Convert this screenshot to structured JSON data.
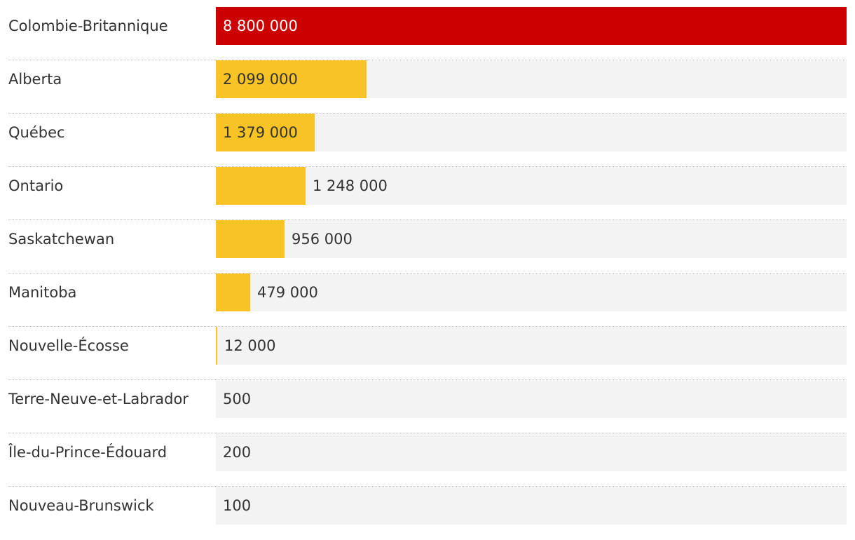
{
  "chart_data": {
    "type": "bar",
    "orientation": "horizontal",
    "title": "",
    "xlabel": "",
    "ylabel": "",
    "xlim": [
      0,
      8800000
    ],
    "grid": false,
    "colors": {
      "max": "#cc0000",
      "default": "#f7c325",
      "track": "#f3f3f3"
    },
    "categories": [
      "Colombie-Britannique",
      "Alberta",
      "Québec",
      "Ontario",
      "Saskatchewan",
      "Manitoba",
      "Nouvelle-Écosse",
      "Terre-Neuve-et-Labrador",
      "Île-du-Prince-Édouard",
      "Nouveau-Brunswick"
    ],
    "values": [
      8800000,
      2099000,
      1379000,
      1248000,
      956000,
      479000,
      12000,
      500,
      200,
      100
    ],
    "value_labels": [
      "8 800 000",
      "2 099 000",
      "1 379 000",
      "1 248 000",
      "956 000",
      "479 000",
      "12 000",
      "500",
      "200",
      "100"
    ]
  }
}
